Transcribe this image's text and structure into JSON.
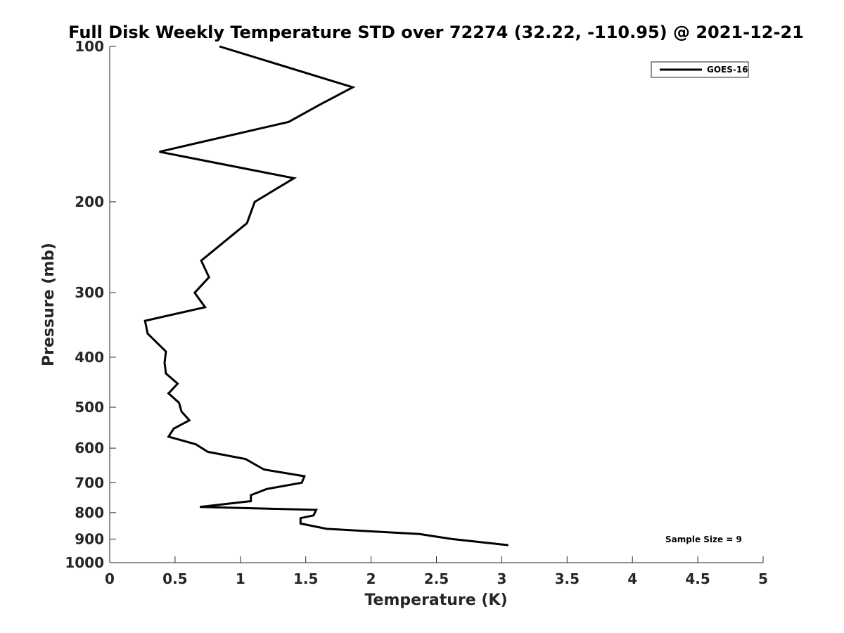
{
  "chart_data": {
    "type": "line",
    "title": "Full Disk Weekly Temperature STD over 72274 (32.22, -110.95) @ 2021-12-21",
    "xlabel": "Temperature (K)",
    "ylabel": "Pressure (mb)",
    "xlim": [
      0,
      5
    ],
    "ylim": [
      100,
      1000
    ],
    "yscale": "log",
    "y_reversed": true,
    "grid": false,
    "legend_position": "top-right",
    "x_ticks": [
      "0",
      "0.5",
      "1",
      "1.5",
      "2",
      "2.5",
      "3",
      "3.5",
      "4",
      "4.5",
      "5"
    ],
    "x_tick_values": [
      0,
      0.5,
      1,
      1.5,
      2,
      2.5,
      3,
      3.5,
      4,
      4.5,
      5
    ],
    "y_ticks": [
      "100",
      "200",
      "300",
      "400",
      "500",
      "600",
      "700",
      "800",
      "900",
      "1000"
    ],
    "y_tick_values": [
      100,
      200,
      300,
      400,
      500,
      600,
      700,
      800,
      900,
      1000
    ],
    "series": [
      {
        "name": "GOES-16",
        "color": "#000000",
        "points": [
          [
            0.84,
            100
          ],
          [
            1.86,
            120
          ],
          [
            1.6,
            130
          ],
          [
            1.37,
            140
          ],
          [
            0.38,
            160
          ],
          [
            1.41,
            180
          ],
          [
            1.11,
            200
          ],
          [
            1.05,
            220
          ],
          [
            0.7,
            260
          ],
          [
            0.76,
            280
          ],
          [
            0.65,
            300
          ],
          [
            0.73,
            320
          ],
          [
            0.27,
            340
          ],
          [
            0.29,
            360
          ],
          [
            0.43,
            390
          ],
          [
            0.42,
            410
          ],
          [
            0.43,
            430
          ],
          [
            0.52,
            450
          ],
          [
            0.45,
            470
          ],
          [
            0.53,
            490
          ],
          [
            0.55,
            510
          ],
          [
            0.61,
            530
          ],
          [
            0.49,
            550
          ],
          [
            0.45,
            570
          ],
          [
            0.66,
            590
          ],
          [
            0.75,
            610
          ],
          [
            1.04,
            630
          ],
          [
            1.18,
            660
          ],
          [
            1.49,
            680
          ],
          [
            1.47,
            700
          ],
          [
            1.2,
            720
          ],
          [
            1.08,
            740
          ],
          [
            1.08,
            760
          ],
          [
            0.69,
            780
          ],
          [
            1.58,
            790
          ],
          [
            1.56,
            810
          ],
          [
            1.46,
            820
          ],
          [
            1.46,
            840
          ],
          [
            1.66,
            860
          ],
          [
            2.37,
            880
          ],
          [
            2.62,
            900
          ],
          [
            3.05,
            925
          ]
        ]
      }
    ],
    "annotations": [
      "Sample Size = 9"
    ]
  }
}
